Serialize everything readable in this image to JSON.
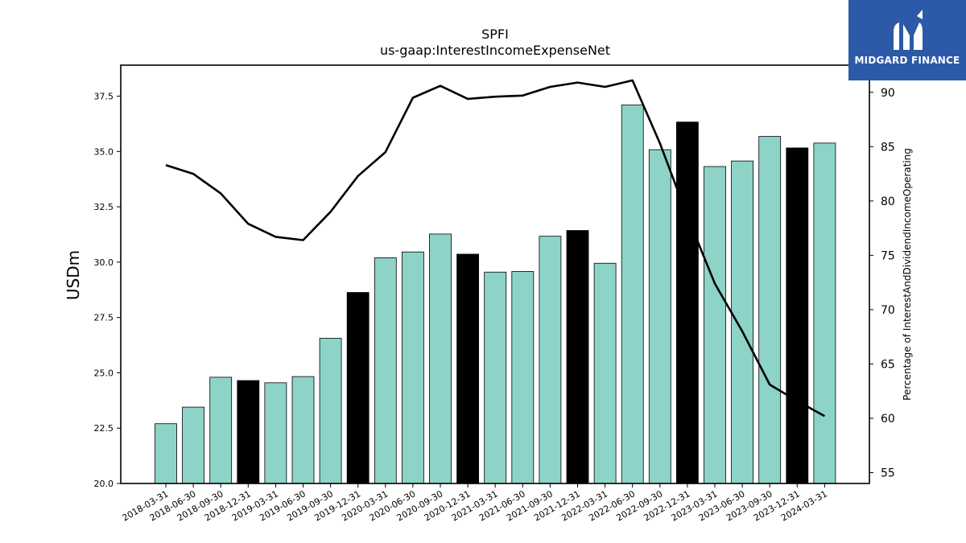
{
  "chart_data": {
    "type": "bar",
    "title": "SPFI",
    "subtitle": "us-gaap:InterestIncomeExpenseNet",
    "ylabel": "USDm",
    "y2label": "Percentage of InterestAndDividendIncomeOperating",
    "ylim": [
      20.0,
      38.9
    ],
    "y2lim": [
      54.0,
      92.5
    ],
    "yticks": [
      "20.0",
      "22.5",
      "25.0",
      "27.5",
      "30.0",
      "32.5",
      "35.0",
      "37.5"
    ],
    "y2ticks": [
      "55",
      "60",
      "65",
      "70",
      "75",
      "80",
      "85",
      "90"
    ],
    "categories": [
      "2018-03-31",
      "2018-06-30",
      "2018-09-30",
      "2018-12-31",
      "2019-03-31",
      "2019-06-30",
      "2019-09-30",
      "2019-12-31",
      "2020-03-31",
      "2020-06-30",
      "2020-09-30",
      "2020-12-31",
      "2021-03-31",
      "2021-06-30",
      "2021-09-30",
      "2021-12-31",
      "2022-03-31",
      "2022-06-30",
      "2022-09-30",
      "2022-12-31",
      "2023-03-31",
      "2023-06-30",
      "2023-09-30",
      "2023-12-31",
      "2024-03-31"
    ],
    "series": [
      {
        "type": "bar",
        "axis": "left",
        "values": [
          22.7,
          23.45,
          24.8,
          24.65,
          24.55,
          24.83,
          26.56,
          28.63,
          30.2,
          30.46,
          31.27,
          30.36,
          29.55,
          29.58,
          31.17,
          31.43,
          29.95,
          37.1,
          35.08,
          36.33,
          34.32,
          34.57,
          35.68,
          35.16,
          35.38
        ],
        "highlighted": [
          false,
          false,
          false,
          true,
          false,
          false,
          false,
          true,
          false,
          false,
          false,
          true,
          false,
          false,
          false,
          true,
          false,
          false,
          false,
          true,
          false,
          false,
          false,
          true,
          false
        ]
      },
      {
        "type": "line",
        "axis": "right",
        "values": [
          83.3,
          82.5,
          80.7,
          77.9,
          76.7,
          76.4,
          79.0,
          82.3,
          84.5,
          89.5,
          90.6,
          89.4,
          89.6,
          89.7,
          90.5,
          90.9,
          90.5,
          91.1,
          85.3,
          78.6,
          72.4,
          68.0,
          63.1,
          61.6,
          60.2
        ]
      }
    ],
    "colors": {
      "bar": "#8dd3c7",
      "bar_highlight": "#000000",
      "line": "#000000"
    }
  },
  "logo": {
    "text": "MIDGARD FINANCE",
    "bg": "#2c5aa8"
  }
}
